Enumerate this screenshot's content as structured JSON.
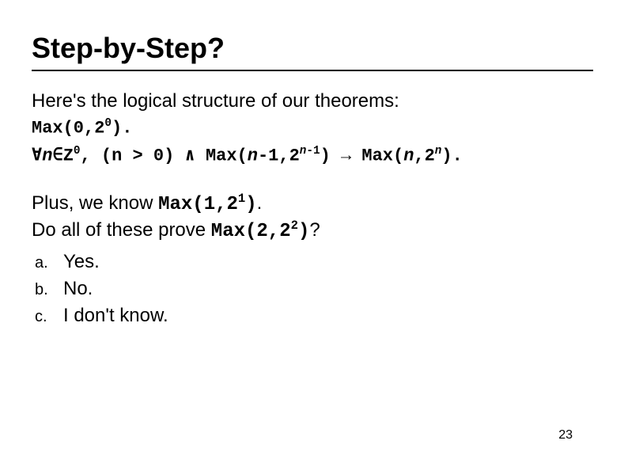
{
  "slide": {
    "title": "Step-by-Step?",
    "intro": "Here's the logical structure of our theorems:",
    "theorem1_a": "Max(0,2",
    "theorem1_b": "0",
    "theorem1_c": ").",
    "theorem2_a": "∀",
    "theorem2_b": "n",
    "theorem2_c": "∈Z",
    "theorem2_d": "0",
    "theorem2_e": ", (n > 0) ∧ Max(",
    "theorem2_f": "n",
    "theorem2_g": "-1,2",
    "theorem2_h": "n",
    "theorem2_i": "-1",
    "theorem2_j": ") → Max(",
    "theorem2_k": "n",
    "theorem2_l": ",2",
    "theorem2_m": "n",
    "theorem2_n": ").",
    "plus_a": "Plus, we know ",
    "plus_b": "Max(1,2",
    "plus_c": "1",
    "plus_d": ")",
    "plus_e": ".",
    "q_a": "Do all of these prove ",
    "q_b": "Max(2,2",
    "q_c": "2",
    "q_d": ")",
    "q_e": "?",
    "answers": [
      {
        "letter": "a.",
        "text": "Yes."
      },
      {
        "letter": "b.",
        "text": "No."
      },
      {
        "letter": "c.",
        "text": "I don't know."
      }
    ],
    "page": "23"
  },
  "style": {
    "background_color": "#ffffff",
    "title_fontsize": 36,
    "body_fontsize": 24,
    "theorem_fontsize": 22,
    "answer_letter_fontsize": 20,
    "footer_fontsize": 16,
    "underline_color": "#000000",
    "text_color": "#000000"
  }
}
